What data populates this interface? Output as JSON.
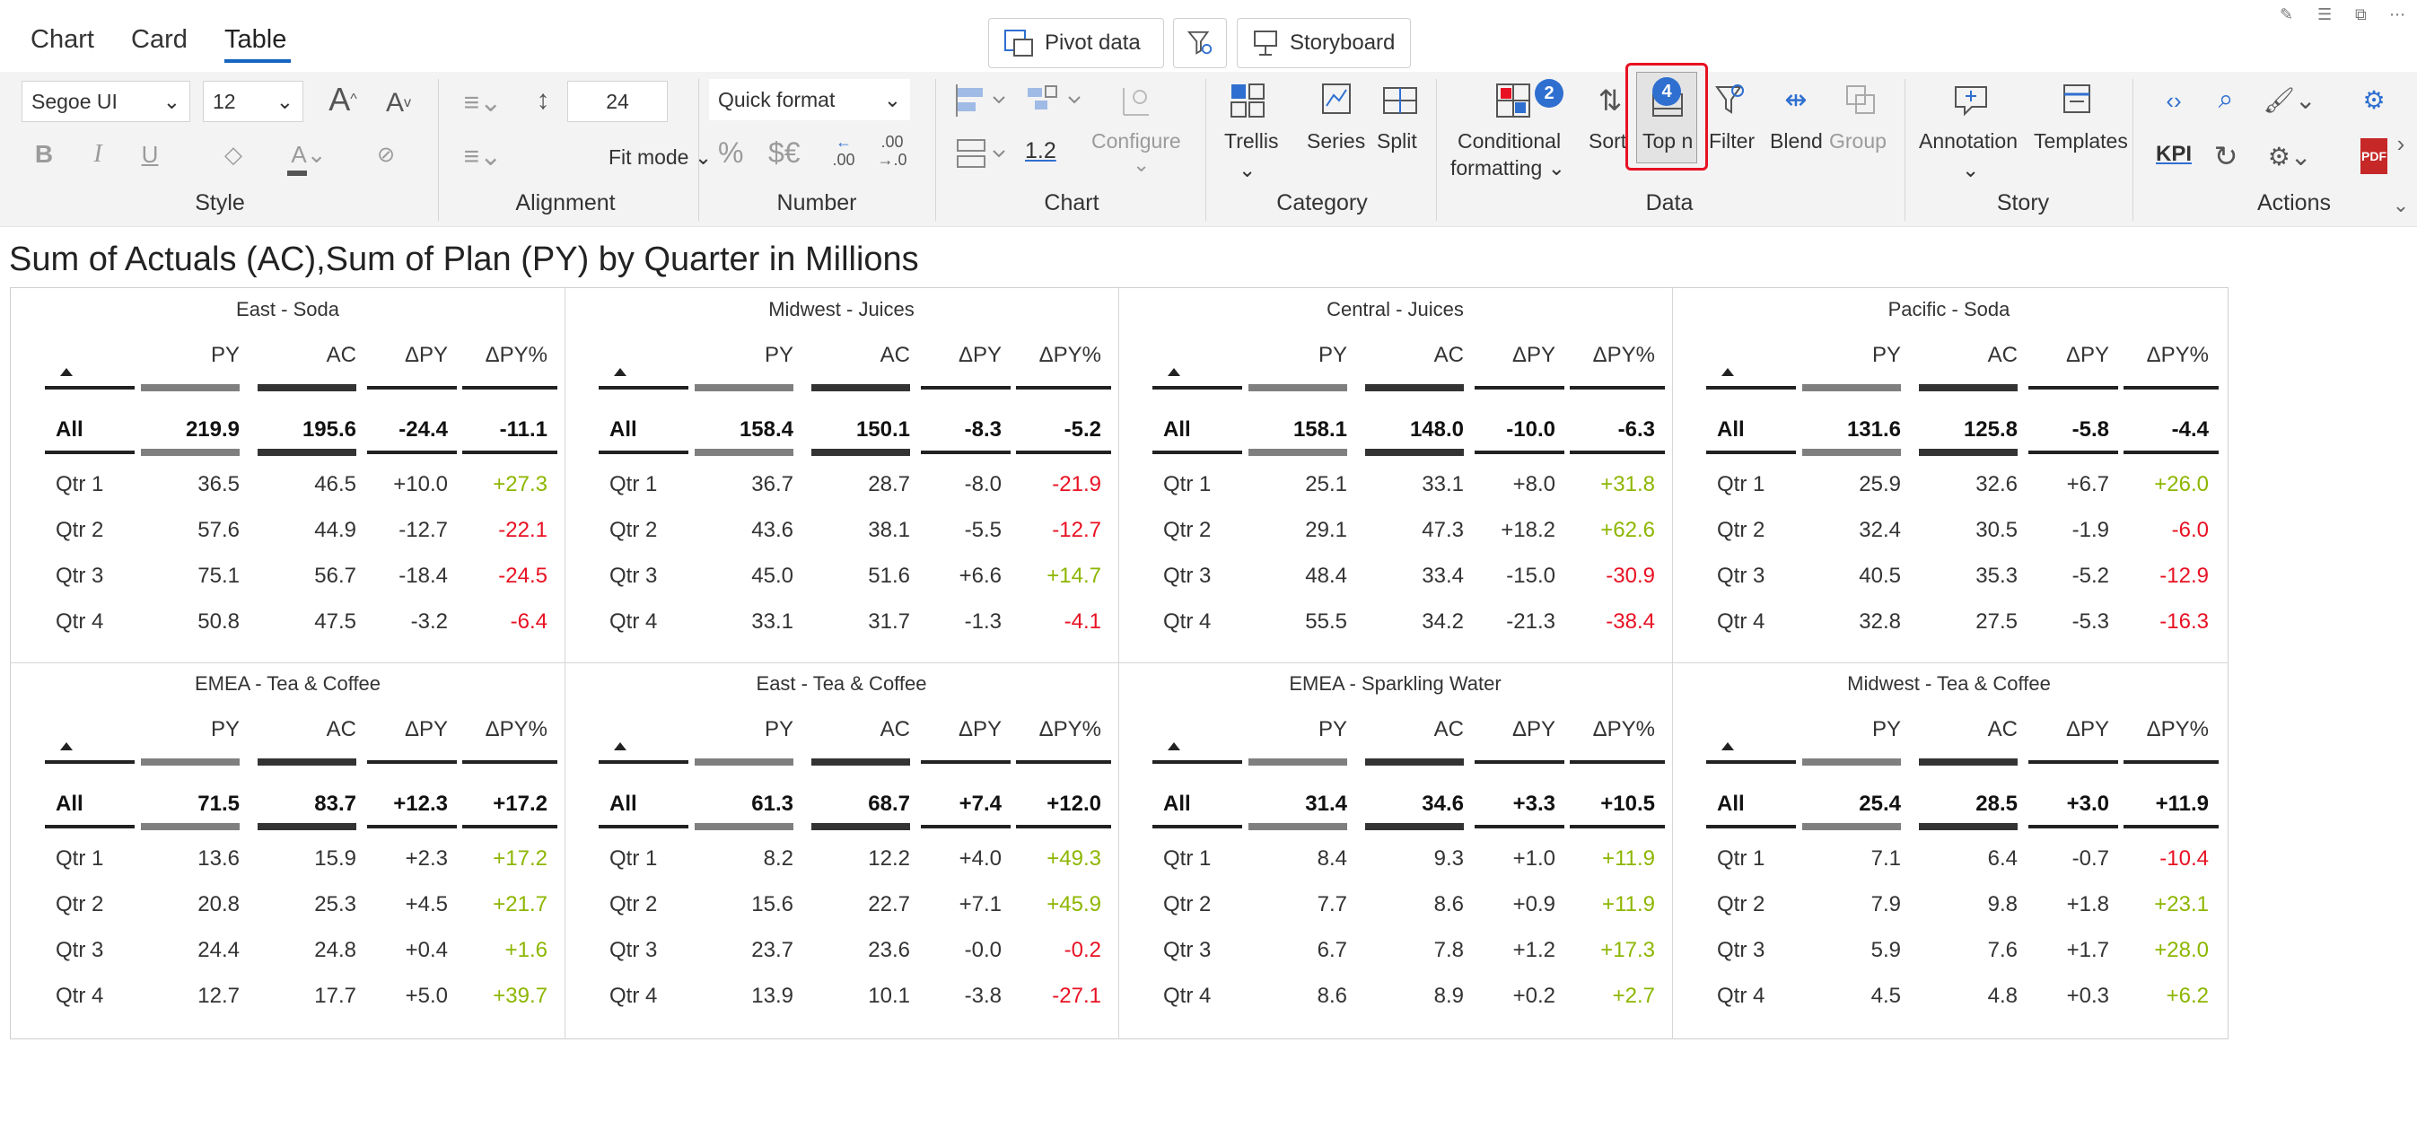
{
  "tabs": [
    {
      "label": "Chart",
      "active": false
    },
    {
      "label": "Card",
      "active": false
    },
    {
      "label": "Table",
      "active": true
    }
  ],
  "top_buttons": {
    "pivot": "Pivot data",
    "storyboard": "Storyboard"
  },
  "ribbon": {
    "style": {
      "font_family": "Segoe UI",
      "font_size": "12",
      "label": "Style"
    },
    "alignment": {
      "row_height": "24",
      "fit_mode": "Fit mode",
      "label": "Alignment"
    },
    "number": {
      "quick_format": "Quick format",
      "percent": "%",
      "currency": "$€",
      "dec_left": ".0",
      "dec_left_top": "←",
      "dec_left_bottom": ".00",
      "dec_right_top": ".00",
      "dec_right_bottom": "→.0",
      "label": "Number"
    },
    "chart": {
      "scale": "1.2",
      "configure": "Configure",
      "label": "Chart"
    },
    "category": {
      "trellis": "Trellis",
      "series": "Series",
      "split": "Split",
      "label": "Category"
    },
    "data": {
      "conditional_1": "Conditional",
      "conditional_2": "formatting",
      "conditional_badge": "2",
      "sort": "Sort",
      "topn": "Top n",
      "topn_badge": "4",
      "filter": "Filter",
      "blend": "Blend",
      "group": "Group",
      "label": "Data"
    },
    "story": {
      "annotation": "Annotation",
      "templates": "Templates",
      "label": "Story"
    },
    "actions": {
      "kpi": "KPI",
      "label": "Actions"
    }
  },
  "title": "Sum of Actuals (AC),Sum of Plan (PY) by Quarter in Millions",
  "columns": [
    "PY",
    "AC",
    "ΔPY",
    "ΔPY%"
  ],
  "panels": [
    {
      "title": "East - Soda",
      "all": [
        "219.9",
        "195.6",
        "-24.4",
        "-11.1"
      ],
      "rows": [
        [
          "Qtr 1",
          "36.5",
          "46.5",
          "+10.0",
          "+27.3"
        ],
        [
          "Qtr 2",
          "57.6",
          "44.9",
          "-12.7",
          "-22.1"
        ],
        [
          "Qtr 3",
          "75.1",
          "56.7",
          "-18.4",
          "-24.5"
        ],
        [
          "Qtr 4",
          "50.8",
          "47.5",
          "-3.2",
          "-6.4"
        ]
      ]
    },
    {
      "title": "Midwest - Juices",
      "all": [
        "158.4",
        "150.1",
        "-8.3",
        "-5.2"
      ],
      "rows": [
        [
          "Qtr 1",
          "36.7",
          "28.7",
          "-8.0",
          "-21.9"
        ],
        [
          "Qtr 2",
          "43.6",
          "38.1",
          "-5.5",
          "-12.7"
        ],
        [
          "Qtr 3",
          "45.0",
          "51.6",
          "+6.6",
          "+14.7"
        ],
        [
          "Qtr 4",
          "33.1",
          "31.7",
          "-1.3",
          "-4.1"
        ]
      ]
    },
    {
      "title": "Central - Juices",
      "all": [
        "158.1",
        "148.0",
        "-10.0",
        "-6.3"
      ],
      "rows": [
        [
          "Qtr 1",
          "25.1",
          "33.1",
          "+8.0",
          "+31.8"
        ],
        [
          "Qtr 2",
          "29.1",
          "47.3",
          "+18.2",
          "+62.6"
        ],
        [
          "Qtr 3",
          "48.4",
          "33.4",
          "-15.0",
          "-30.9"
        ],
        [
          "Qtr 4",
          "55.5",
          "34.2",
          "-21.3",
          "-38.4"
        ]
      ]
    },
    {
      "title": "Pacific - Soda",
      "all": [
        "131.6",
        "125.8",
        "-5.8",
        "-4.4"
      ],
      "rows": [
        [
          "Qtr 1",
          "25.9",
          "32.6",
          "+6.7",
          "+26.0"
        ],
        [
          "Qtr 2",
          "32.4",
          "30.5",
          "-1.9",
          "-6.0"
        ],
        [
          "Qtr 3",
          "40.5",
          "35.3",
          "-5.2",
          "-12.9"
        ],
        [
          "Qtr 4",
          "32.8",
          "27.5",
          "-5.3",
          "-16.3"
        ]
      ]
    },
    {
      "title": "EMEA - Tea & Coffee",
      "all": [
        "71.5",
        "83.7",
        "+12.3",
        "+17.2"
      ],
      "rows": [
        [
          "Qtr 1",
          "13.6",
          "15.9",
          "+2.3",
          "+17.2"
        ],
        [
          "Qtr 2",
          "20.8",
          "25.3",
          "+4.5",
          "+21.7"
        ],
        [
          "Qtr 3",
          "24.4",
          "24.8",
          "+0.4",
          "+1.6"
        ],
        [
          "Qtr 4",
          "12.7",
          "17.7",
          "+5.0",
          "+39.7"
        ]
      ]
    },
    {
      "title": "East - Tea & Coffee",
      "all": [
        "61.3",
        "68.7",
        "+7.4",
        "+12.0"
      ],
      "rows": [
        [
          "Qtr 1",
          "8.2",
          "12.2",
          "+4.0",
          "+49.3"
        ],
        [
          "Qtr 2",
          "15.6",
          "22.7",
          "+7.1",
          "+45.9"
        ],
        [
          "Qtr 3",
          "23.7",
          "23.6",
          "-0.0",
          "-0.2"
        ],
        [
          "Qtr 4",
          "13.9",
          "10.1",
          "-3.8",
          "-27.1"
        ]
      ]
    },
    {
      "title": "EMEA - Sparkling Water",
      "all": [
        "31.4",
        "34.6",
        "+3.3",
        "+10.5"
      ],
      "rows": [
        [
          "Qtr 1",
          "8.4",
          "9.3",
          "+1.0",
          "+11.9"
        ],
        [
          "Qtr 2",
          "7.7",
          "8.6",
          "+0.9",
          "+11.9"
        ],
        [
          "Qtr 3",
          "6.7",
          "7.8",
          "+1.2",
          "+17.3"
        ],
        [
          "Qtr 4",
          "8.6",
          "8.9",
          "+0.2",
          "+2.7"
        ]
      ]
    },
    {
      "title": "Midwest - Tea & Coffee",
      "all": [
        "25.4",
        "28.5",
        "+3.0",
        "+11.9"
      ],
      "rows": [
        [
          "Qtr 1",
          "7.1",
          "6.4",
          "-0.7",
          "-10.4"
        ],
        [
          "Qtr 2",
          "7.9",
          "9.8",
          "+1.8",
          "+23.1"
        ],
        [
          "Qtr 3",
          "5.9",
          "7.6",
          "+1.7",
          "+28.0"
        ],
        [
          "Qtr 4",
          "4.5",
          "4.8",
          "+0.3",
          "+6.2"
        ]
      ]
    }
  ],
  "colors": {
    "positive": "#8db600",
    "negative": "#e81123",
    "accent": "#1565c0",
    "highlight": "#e81123"
  }
}
